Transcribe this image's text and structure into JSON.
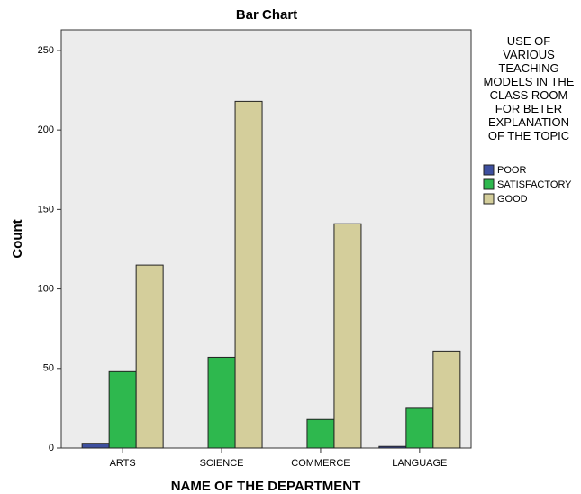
{
  "chart_data": {
    "type": "bar",
    "title": "Bar Chart",
    "xlabel": "NAME OF THE DEPARTMENT",
    "ylabel": "Count",
    "legend_title": "USE OF VARIOUS TEACHING MODELS IN THE CLASS ROOM FOR BETER EXPLANATION OF THE TOPIC",
    "categories": [
      "ARTS",
      "SCIENCE",
      "COMMERCE",
      "LANGUAGE"
    ],
    "series": [
      {
        "name": "POOR",
        "color": "#3d4f9f",
        "values": [
          3,
          0,
          0,
          1
        ]
      },
      {
        "name": "SATISFACTORY",
        "color": "#2eb84e",
        "values": [
          48,
          57,
          18,
          25
        ]
      },
      {
        "name": "GOOD",
        "color": "#d4ce9b",
        "values": [
          115,
          218,
          141,
          61
        ]
      }
    ],
    "ylim": [
      0,
      263
    ],
    "yticks": [
      0,
      50,
      100,
      150,
      200,
      250
    ],
    "grid": false,
    "legend": "right"
  }
}
